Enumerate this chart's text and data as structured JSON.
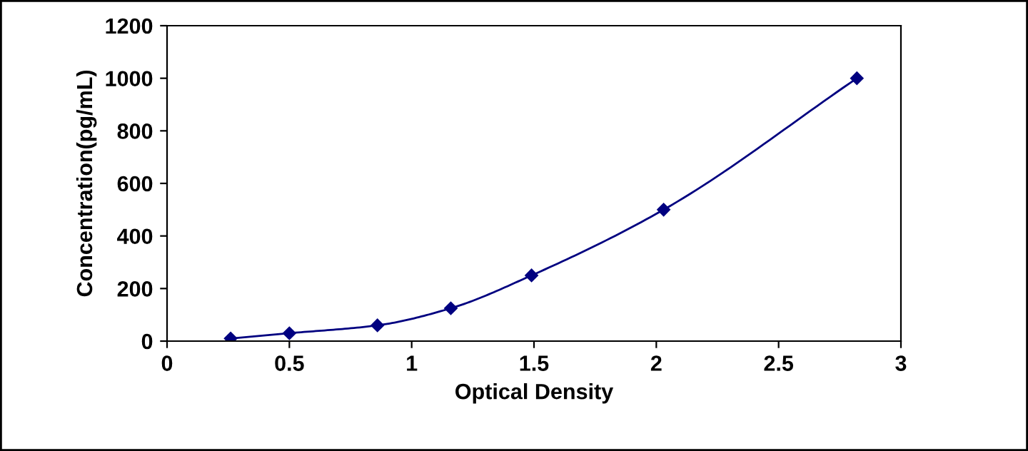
{
  "chart_data": {
    "type": "line",
    "xlabel": "Optical Density",
    "ylabel": "Concentration(pg/mL)",
    "series": [
      {
        "color": "#000080",
        "x": [
          0.26,
          0.5,
          0.86,
          1.16,
          1.49,
          2.03,
          2.82
        ],
        "values": [
          10,
          30,
          60,
          125,
          250,
          500,
          1000
        ]
      }
    ],
    "xlim": [
      0,
      3
    ],
    "xticks": [
      0,
      0.5,
      1,
      1.5,
      2,
      2.5,
      3
    ],
    "ylim": [
      0,
      1200
    ],
    "yticks": [
      0,
      200,
      400,
      600,
      800,
      1000,
      1200
    ],
    "marker": "diamond",
    "line_style": "solid",
    "grid": false,
    "legend": false
  }
}
